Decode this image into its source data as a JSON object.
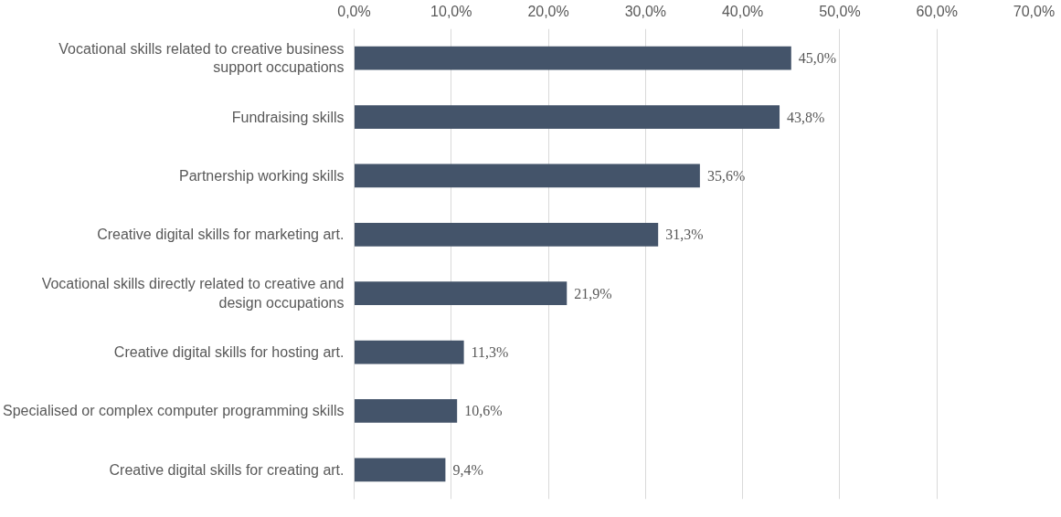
{
  "chart_data": {
    "type": "bar",
    "orientation": "horizontal",
    "categories": [
      "Vocational skills related to creative business support occupations",
      "Fundraising skills",
      "Partnership working skills",
      "Creative digital skills for marketing art.",
      "Vocational skills directly related to creative and design occupations",
      "Creative digital skills for hosting art.",
      "Specialised or complex computer programming skills",
      "Creative digital skills for creating art."
    ],
    "values": [
      45.0,
      43.8,
      35.6,
      31.3,
      21.9,
      11.3,
      10.6,
      9.4
    ],
    "value_labels": [
      "45,0%",
      "43,8%",
      "35,6%",
      "31,3%",
      "21,9%",
      "11,3%",
      "10,6%",
      "9,4%"
    ],
    "color": "#44546a",
    "xlim": [
      0,
      70
    ],
    "xticks": [
      {
        "value": 0,
        "label": "0,0%"
      },
      {
        "value": 10,
        "label": "10,0%"
      },
      {
        "value": 20,
        "label": "20,0%"
      },
      {
        "value": 30,
        "label": "30,0%"
      },
      {
        "value": 40,
        "label": "40,0%"
      },
      {
        "value": 50,
        "label": "50,0%"
      },
      {
        "value": 60,
        "label": "60,0%"
      },
      {
        "value": 70,
        "label": "70,0%"
      }
    ],
    "grid": "x"
  }
}
